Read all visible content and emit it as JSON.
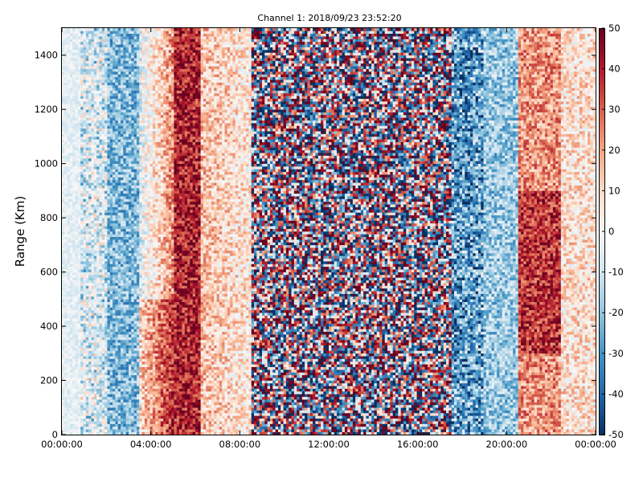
{
  "chart_data": {
    "type": "heatmap",
    "title": "Channel 1: 2018/09/23 23:52:20",
    "xlabel": "",
    "ylabel": "Range (Km)",
    "x_ticks": [
      "00:00:00",
      "04:00:00",
      "08:00:00",
      "12:00:00",
      "16:00:00",
      "20:00:00",
      "00:00:00"
    ],
    "x_tick_hours": [
      0,
      4,
      8,
      12,
      16,
      20,
      24
    ],
    "xlim_hours": [
      0,
      24
    ],
    "y_ticks": [
      0,
      200,
      400,
      600,
      800,
      1000,
      1200,
      1400
    ],
    "ylim": [
      0,
      1500
    ],
    "colorbar": {
      "colormap": "RdBu_r",
      "vmin": -50,
      "vmax": 50,
      "ticks": [
        -50,
        -40,
        -30,
        -20,
        -10,
        0,
        10,
        20,
        30,
        40,
        50
      ]
    },
    "grid": false
  },
  "colors": {
    "min": "#053061",
    "mid": "#f7f7f7",
    "max": "#67001f"
  }
}
